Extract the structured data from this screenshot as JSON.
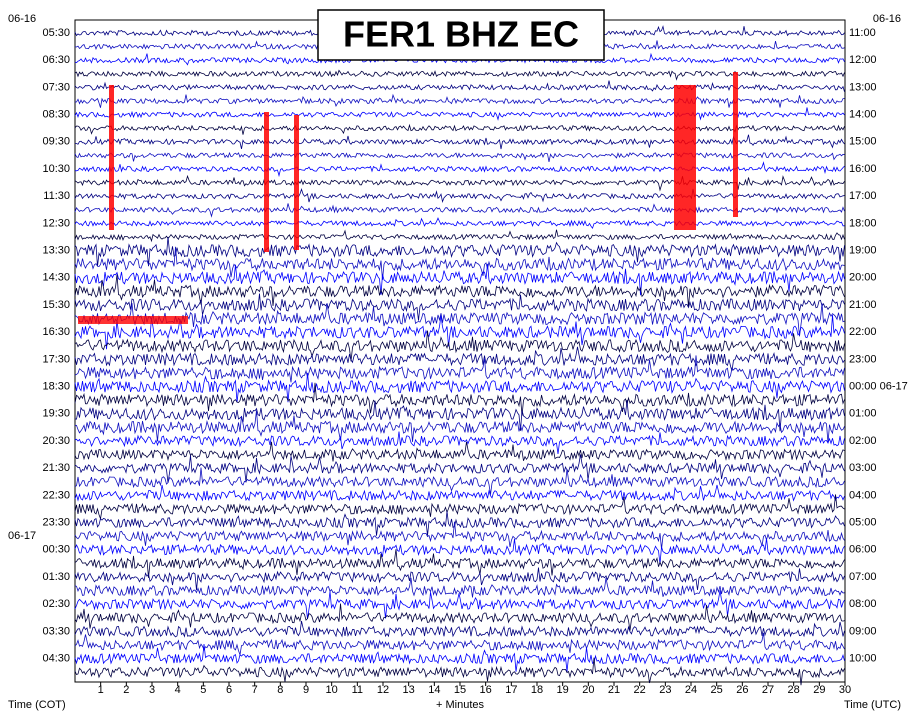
{
  "chart_data": {
    "type": "helicorder",
    "title": "FER1 BHZ EC",
    "date_top_left": "06-16",
    "date_top_right": "06-16",
    "date_left_mid": "06-17",
    "left_times": [
      "05:30",
      "06:30",
      "07:30",
      "08:30",
      "09:30",
      "10:30",
      "11:30",
      "12:30",
      "13:30",
      "14:30",
      "15:30",
      "16:30",
      "17:30",
      "18:30",
      "19:30",
      "20:30",
      "21:30",
      "22:30",
      "23:30",
      "00:30",
      "01:30",
      "02:30",
      "03:30",
      "04:30"
    ],
    "right_times": [
      "11:00",
      "12:00",
      "13:00",
      "14:00",
      "15:00",
      "16:00",
      "17:00",
      "18:00",
      "19:00",
      "20:00",
      "21:00",
      "22:00",
      "23:00",
      "00:00 06-17",
      "01:00",
      "02:00",
      "03:00",
      "04:00",
      "05:00",
      "06:00",
      "07:00",
      "08:00",
      "09:00",
      "10:00"
    ],
    "xlim": [
      0,
      30
    ],
    "xticks": [
      1,
      2,
      3,
      4,
      5,
      6,
      7,
      8,
      9,
      10,
      11,
      12,
      13,
      14,
      15,
      16,
      17,
      18,
      19,
      20,
      21,
      22,
      23,
      24,
      25,
      26,
      27,
      28,
      29,
      30
    ],
    "x_label_left": "Time (COT)",
    "x_label_center": "+ Minutes",
    "x_label_right": "Time (UTC)"
  }
}
